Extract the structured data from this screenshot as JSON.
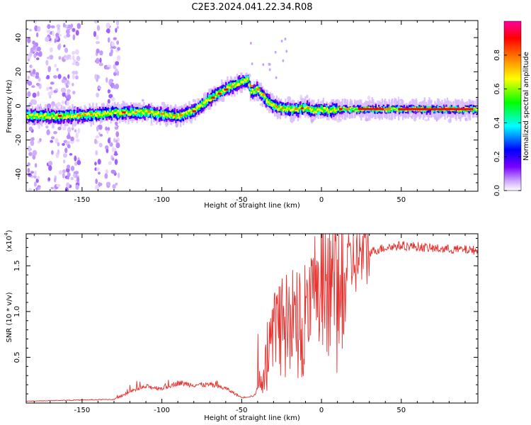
{
  "title": "C2E3.2024.041.22.34.R08",
  "chart_data": [
    {
      "type": "heatmap",
      "xlabel": "Height of straight line (km)",
      "ylabel": "Frequency (Hz)",
      "xlim": [
        -185,
        98
      ],
      "ylim": [
        -50,
        50
      ],
      "xticks": [
        -150,
        -100,
        -50,
        0,
        50
      ],
      "yticks": [
        -40,
        -20,
        0,
        20,
        40
      ],
      "colorbar": {
        "label": "Normalized spectral amplitude",
        "range": [
          0,
          1
        ],
        "ticks": [
          "0.0",
          "0.2",
          "0.4",
          "0.6",
          "0.8"
        ],
        "colormap": [
          "#ffffff",
          "#c8a0ff",
          "#7a00ff",
          "#0000ff",
          "#00ffff",
          "#00ff00",
          "#ffff00",
          "#ff8000",
          "#ff0000",
          "#ff00a0"
        ]
      },
      "ridge": {
        "x": [
          -185,
          -170,
          -160,
          -150,
          -140,
          -130,
          -120,
          -110,
          -100,
          -90,
          -80,
          -70,
          -60,
          -50,
          -46,
          -44,
          -40,
          -35,
          -30,
          -28,
          -25,
          -20,
          -15,
          -10,
          -5,
          0,
          5,
          10,
          20,
          40,
          60,
          80,
          98
        ],
        "y": [
          -6,
          -6,
          -6,
          -5.5,
          -5,
          -4,
          -4,
          -3.5,
          -5,
          -6,
          -3,
          4,
          10,
          14,
          15,
          8,
          10,
          4,
          0,
          -1,
          -1.5,
          -2,
          -2,
          -1,
          -3,
          -2,
          -3,
          -2,
          -2,
          -2,
          -2,
          -2,
          -2
        ]
      }
    },
    {
      "type": "line",
      "series": [
        {
          "name": "SNR",
          "color": "#e8322f"
        }
      ],
      "xlabel": "Height of straight line (km)",
      "ylabel": "SNR (10 * v/v)",
      "y_scale_label": "(x10",
      "y_scale_exp": "4",
      "xlim": [
        -185,
        98
      ],
      "ylim": [
        0,
        1.85
      ],
      "xticks": [
        -150,
        -100,
        -50,
        0,
        50
      ],
      "yticks": [
        0.5,
        1.0,
        1.5
      ],
      "ytick_labels": [
        "0.5",
        "1.0",
        "1.5"
      ],
      "envelope": {
        "x": [
          -185,
          -160,
          -130,
          -120,
          -110,
          -100,
          -90,
          -80,
          -70,
          -60,
          -50,
          -42,
          -38,
          -34,
          -30,
          -25,
          -20,
          -15,
          -10,
          -5,
          0,
          5,
          10,
          15,
          20,
          25,
          30,
          40,
          50,
          60,
          70,
          80,
          98
        ],
        "y": [
          0.02,
          0.03,
          0.04,
          0.12,
          0.18,
          0.16,
          0.22,
          0.2,
          0.2,
          0.16,
          0.06,
          0.08,
          0.25,
          0.55,
          0.8,
          0.8,
          0.85,
          0.85,
          0.95,
          1.05,
          1.15,
          1.25,
          1.3,
          1.45,
          1.55,
          1.6,
          1.65,
          1.7,
          1.72,
          1.71,
          1.69,
          1.68,
          1.67
        ]
      }
    }
  ]
}
